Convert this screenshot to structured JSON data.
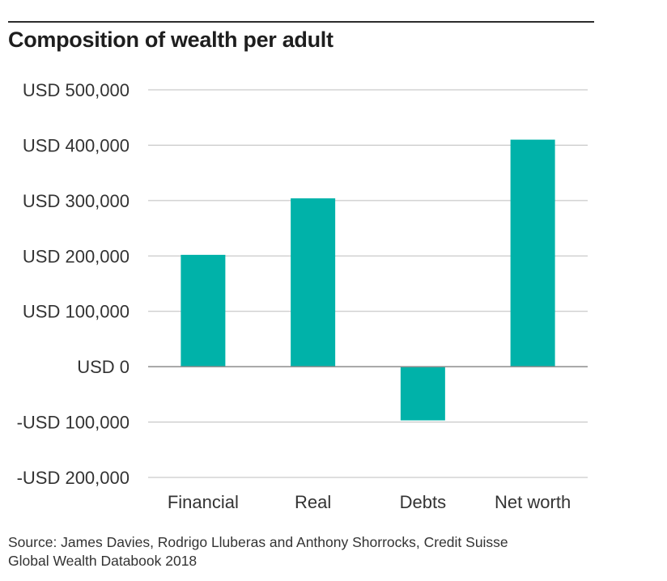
{
  "chart_data": {
    "type": "bar",
    "title": "Composition of wealth per adult",
    "xlabel": "",
    "ylabel": "",
    "categories": [
      "Financial",
      "Real",
      "Debts",
      "Net worth"
    ],
    "values": [
      202000,
      304000,
      -97000,
      410000
    ],
    "ylim": [
      -200000,
      500000
    ],
    "yticks": [
      500000,
      400000,
      300000,
      200000,
      100000,
      0,
      -100000,
      -200000
    ],
    "ytick_labels": [
      "USD 500,000",
      "USD 400,000",
      "USD 300,000",
      "USD 200,000",
      "USD 100,000",
      "USD 0",
      "-USD 100,000",
      "-USD 200,000"
    ],
    "grid": true,
    "bar_color": "#00b2a9",
    "grid_color": "#bdbdbd",
    "zero_line_color": "#8c8c8c"
  },
  "source": {
    "line1": "Source: James Davies, Rodrigo Lluberas and Anthony Shorrocks, Credit Suisse",
    "line2": "Global Wealth Databook 2018"
  }
}
